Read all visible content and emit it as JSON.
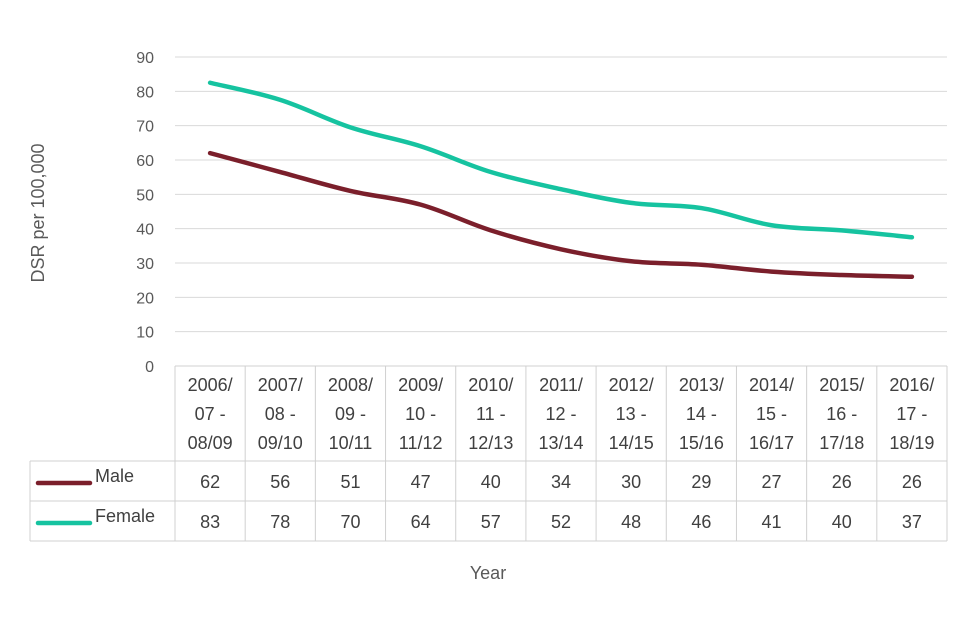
{
  "chart_data": {
    "type": "line",
    "title": "",
    "xlabel": "Year",
    "ylabel": "DSR per 100,000",
    "ylim": [
      0,
      90
    ],
    "yticks": [
      0,
      10,
      20,
      30,
      40,
      50,
      60,
      70,
      80,
      90
    ],
    "grid": true,
    "legend": "data-table",
    "categories": [
      [
        "2006/",
        "07 -",
        "08/09"
      ],
      [
        "2007/",
        "08 -",
        "09/10"
      ],
      [
        "2008/",
        "09 -",
        "10/11"
      ],
      [
        "2009/",
        "10 -",
        "11/12"
      ],
      [
        "2010/",
        "11 -",
        "12/13"
      ],
      [
        "2011/",
        "12 -",
        "13/14"
      ],
      [
        "2012/",
        "13 -",
        "14/15"
      ],
      [
        "2013/",
        "14 -",
        "15/16"
      ],
      [
        "2014/",
        "15 -",
        "16/17"
      ],
      [
        "2015/",
        "16 -",
        "17/18"
      ],
      [
        "2016/",
        "17 -",
        "18/19"
      ]
    ],
    "series": [
      {
        "name": "Male",
        "color": "#7b1f2b",
        "values": [
          62,
          56,
          51,
          47,
          40,
          34,
          30,
          29,
          27,
          26,
          26
        ],
        "plot_values": [
          62,
          56.5,
          51,
          47,
          39.5,
          34,
          30.5,
          29.5,
          27.5,
          26.5,
          26
        ]
      },
      {
        "name": "Female",
        "color": "#16c3a0",
        "values": [
          83,
          78,
          70,
          64,
          57,
          52,
          48,
          46,
          41,
          40,
          37
        ],
        "plot_values": [
          82.5,
          77.5,
          69.5,
          64,
          56.5,
          51.5,
          47.5,
          46,
          41,
          39.5,
          37.5
        ]
      }
    ]
  }
}
